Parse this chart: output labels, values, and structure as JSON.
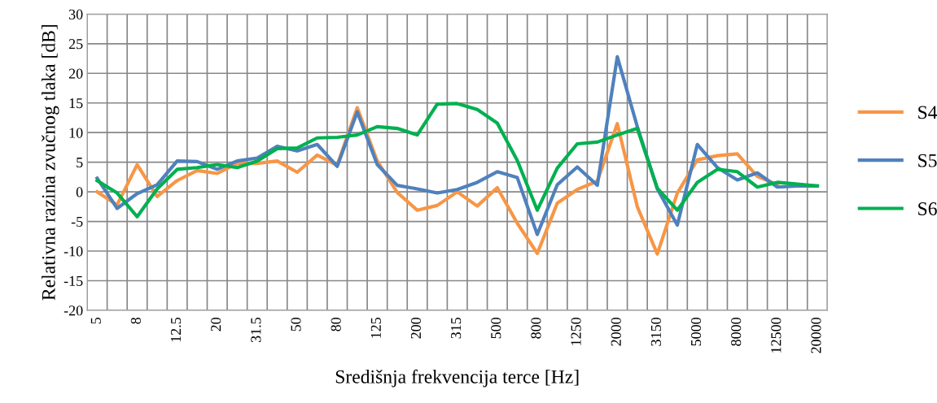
{
  "chart_data": {
    "type": "line",
    "xlabel": "Središnja frekvencija terce [Hz]",
    "ylabel": "Relativna razina zvučnog tlaka [dB]",
    "categories": [
      "5",
      null,
      "8",
      null,
      "12.5",
      null,
      "20",
      null,
      "31.5",
      null,
      "50",
      null,
      "80",
      null,
      "125",
      null,
      "200",
      null,
      "315",
      null,
      "500",
      null,
      "800",
      null,
      "1250",
      null,
      "2000",
      null,
      "3150",
      null,
      "5000",
      null,
      "8000",
      null,
      "12500",
      null,
      "20000"
    ],
    "series": [
      {
        "name": "S4",
        "color": "#f79646",
        "values": [
          0,
          -2.2,
          4.6,
          -0.8,
          1.9,
          3.6,
          3.1,
          4.8,
          4.8,
          5.2,
          3.3,
          6.2,
          4.5,
          14.2,
          5.2,
          -0.1,
          -3.1,
          -2.3,
          0,
          -2.4,
          0.7,
          -5.3,
          -10.4,
          -1.9,
          0.4,
          1.8,
          11.5,
          -2.5,
          -10.5,
          -0.2,
          5.4,
          6.1,
          6.4,
          2.6,
          1.2,
          null,
          null
        ]
      },
      {
        "name": "S5",
        "color": "#4f81bd",
        "values": [
          2.3,
          -2.8,
          -0.3,
          1.2,
          5.2,
          5.1,
          3.8,
          5.2,
          5.7,
          7.7,
          6.9,
          8.0,
          4.3,
          13.5,
          4.6,
          1.1,
          0.5,
          -0.2,
          0.4,
          1.6,
          3.4,
          2.4,
          -7.2,
          1.2,
          4.2,
          1.1,
          22.8,
          11,
          0.5,
          -5.6,
          8.0,
          4.1,
          2.0,
          3.2,
          0.8,
          1.0,
          1.0
        ]
      },
      {
        "name": "S6",
        "color": "#00b050",
        "values": [
          1.9,
          -0.2,
          -4.2,
          0.5,
          3.8,
          4.1,
          4.6,
          4.1,
          5.2,
          7.3,
          7.4,
          9.1,
          9.2,
          9.6,
          11.0,
          10.7,
          9.6,
          14.8,
          14.9,
          13.9,
          11.6,
          5.3,
          -3.1,
          4.0,
          8.1,
          8.4,
          9.6,
          10.7,
          0.6,
          -3.1,
          1.6,
          3.8,
          3.4,
          0.8,
          1.6,
          1.3,
          1.0
        ]
      }
    ],
    "ylim": [
      -20,
      30
    ],
    "yticks": [
      -20,
      -15,
      -10,
      -5,
      0,
      5,
      10,
      15,
      20,
      25,
      30
    ],
    "grid": true,
    "legend": "right",
    "marker": "none",
    "line_style": "solid"
  }
}
